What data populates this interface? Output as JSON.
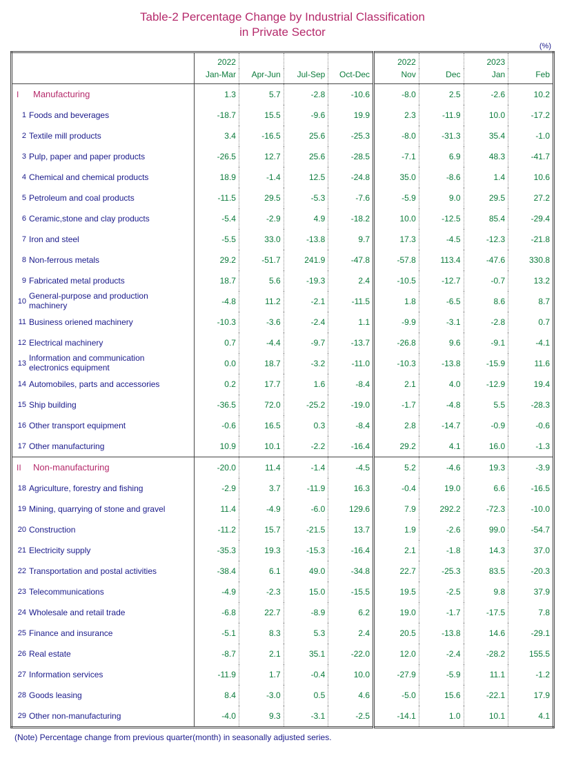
{
  "title": "Table-2   Percentage Change by Industrial Classification",
  "subtitle": "in Private Sector",
  "unit": "(%)",
  "note": "(Note)    Percentage change from previous quarter(month) in seasonally adjusted series.",
  "columns": {
    "group1_top": [
      "2022",
      "",
      "",
      ""
    ],
    "group1_bot": [
      "Jan-Mar",
      "Apr-Jun",
      "Jul-Sep",
      "Oct-Dec"
    ],
    "group2_top": [
      "2022",
      "",
      "2023",
      ""
    ],
    "group2_bot": [
      "Nov",
      "Dec",
      "Jan",
      "Feb"
    ]
  },
  "colors": {
    "title": "#b52a6b",
    "header": "#1a1a8a",
    "value": "#0a7a3a",
    "border": "#444444",
    "dotted": "#888888",
    "background": "#ffffff"
  },
  "rows": [
    {
      "type": "section",
      "roman": "I",
      "label": "Manufacturing",
      "v": [
        "1.3",
        "5.7",
        "-2.8",
        "-10.6",
        "-8.0",
        "2.5",
        "-2.6",
        "10.2"
      ]
    },
    {
      "n": "1",
      "label": "Foods and beverages",
      "v": [
        "-18.7",
        "15.5",
        "-9.6",
        "19.9",
        "2.3",
        "-11.9",
        "10.0",
        "-17.2"
      ]
    },
    {
      "n": "2",
      "label": "Textile mill products",
      "v": [
        "3.4",
        "-16.5",
        "25.6",
        "-25.3",
        "-8.0",
        "-31.3",
        "35.4",
        "-1.0"
      ]
    },
    {
      "n": "3",
      "label": "Pulp, paper and paper products",
      "v": [
        "-26.5",
        "12.7",
        "25.6",
        "-28.5",
        "-7.1",
        "6.9",
        "48.3",
        "-41.7"
      ]
    },
    {
      "n": "4",
      "label": "Chemical and chemical products",
      "v": [
        "18.9",
        "-1.4",
        "12.5",
        "-24.8",
        "35.0",
        "-8.6",
        "1.4",
        "10.6"
      ]
    },
    {
      "n": "5",
      "label": "Petroleum and coal products",
      "v": [
        "-11.5",
        "29.5",
        "-5.3",
        "-7.6",
        "-5.9",
        "9.0",
        "29.5",
        "27.2"
      ]
    },
    {
      "n": "6",
      "label": "Ceramic,stone and clay products",
      "v": [
        "-5.4",
        "-2.9",
        "4.9",
        "-18.2",
        "10.0",
        "-12.5",
        "85.4",
        "-29.4"
      ]
    },
    {
      "n": "7",
      "label": "Iron and steel",
      "v": [
        "-5.5",
        "33.0",
        "-13.8",
        "9.7",
        "17.3",
        "-4.5",
        "-12.3",
        "-21.8"
      ]
    },
    {
      "n": "8",
      "label": "Non-ferrous metals",
      "v": [
        "29.2",
        "-51.7",
        "241.9",
        "-47.8",
        "-57.8",
        "113.4",
        "-47.6",
        "330.8"
      ]
    },
    {
      "n": "9",
      "label": "Fabricated metal products",
      "v": [
        "18.7",
        "5.6",
        "-19.3",
        "2.4",
        "-10.5",
        "-12.7",
        "-0.7",
        "13.2"
      ]
    },
    {
      "n": "10",
      "label": "General-purpose and production machinery",
      "v": [
        "-4.8",
        "11.2",
        "-2.1",
        "-11.5",
        "1.8",
        "-6.5",
        "8.6",
        "8.7"
      ]
    },
    {
      "n": "11",
      "label": "Business oriened machinery",
      "v": [
        "-10.3",
        "-3.6",
        "-2.4",
        "1.1",
        "-9.9",
        "-3.1",
        "-2.8",
        "0.7"
      ]
    },
    {
      "n": "12",
      "label": "Electrical machinery",
      "v": [
        "0.7",
        "-4.4",
        "-9.7",
        "-13.7",
        "-26.8",
        "9.6",
        "-9.1",
        "-4.1"
      ]
    },
    {
      "n": "13",
      "label": "Information and communication electronics equipment",
      "v": [
        "0.0",
        "18.7",
        "-3.2",
        "-11.0",
        "-10.3",
        "-13.8",
        "-15.9",
        "11.6"
      ]
    },
    {
      "n": "14",
      "label": "Automobiles, parts and accessories",
      "v": [
        "0.2",
        "17.7",
        "1.6",
        "-8.4",
        "2.1",
        "4.0",
        "-12.9",
        "19.4"
      ]
    },
    {
      "n": "15",
      "label": "Ship building",
      "v": [
        "-36.5",
        "72.0",
        "-25.2",
        "-19.0",
        "-1.7",
        "-4.8",
        "5.5",
        "-28.3"
      ]
    },
    {
      "n": "16",
      "label": "Other transport equipment",
      "v": [
        "-0.6",
        "16.5",
        "0.3",
        "-8.4",
        "2.8",
        "-14.7",
        "-0.9",
        "-0.6"
      ]
    },
    {
      "n": "17",
      "label": "Other manufacturing",
      "v": [
        "10.9",
        "10.1",
        "-2.2",
        "-16.4",
        "29.2",
        "4.1",
        "16.0",
        "-1.3"
      ]
    },
    {
      "type": "section",
      "roman": "II",
      "label": "Non-manufacturing",
      "v": [
        "-20.0",
        "11.4",
        "-1.4",
        "-4.5",
        "5.2",
        "-4.6",
        "19.3",
        "-3.9"
      ]
    },
    {
      "n": "18",
      "label": "Agriculture, forestry and fishing",
      "v": [
        "-2.9",
        "3.7",
        "-11.9",
        "16.3",
        "-0.4",
        "19.0",
        "6.6",
        "-16.5"
      ]
    },
    {
      "n": "19",
      "label": "Mining, quarrying of stone and gravel",
      "v": [
        "11.4",
        "-4.9",
        "-6.0",
        "129.6",
        "7.9",
        "292.2",
        "-72.3",
        "-10.0"
      ]
    },
    {
      "n": "20",
      "label": "Construction",
      "v": [
        "-11.2",
        "15.7",
        "-21.5",
        "13.7",
        "1.9",
        "-2.6",
        "99.0",
        "-54.7"
      ]
    },
    {
      "n": "21",
      "label": "Electricity supply",
      "v": [
        "-35.3",
        "19.3",
        "-15.3",
        "-16.4",
        "2.1",
        "-1.8",
        "14.3",
        "37.0"
      ]
    },
    {
      "n": "22",
      "label": "Transportation and postal activities",
      "v": [
        "-38.4",
        "6.1",
        "49.0",
        "-34.8",
        "22.7",
        "-25.3",
        "83.5",
        "-20.3"
      ]
    },
    {
      "n": "23",
      "label": "Telecommunications",
      "v": [
        "-4.9",
        "-2.3",
        "15.0",
        "-15.5",
        "19.5",
        "-2.5",
        "9.8",
        "37.9"
      ]
    },
    {
      "n": "24",
      "label": "Wholesale and retail trade",
      "v": [
        "-6.8",
        "22.7",
        "-8.9",
        "6.2",
        "19.0",
        "-1.7",
        "-17.5",
        "7.8"
      ]
    },
    {
      "n": "25",
      "label": "Finance and insurance",
      "v": [
        "-5.1",
        "8.3",
        "5.3",
        "2.4",
        "20.5",
        "-13.8",
        "14.6",
        "-29.1"
      ]
    },
    {
      "n": "26",
      "label": "Real estate",
      "v": [
        "-8.7",
        "2.1",
        "35.1",
        "-22.0",
        "12.0",
        "-2.4",
        "-28.2",
        "155.5"
      ]
    },
    {
      "n": "27",
      "label": "Information services",
      "v": [
        "-11.9",
        "1.7",
        "-0.4",
        "10.0",
        "-27.9",
        "-5.9",
        "11.1",
        "-1.2"
      ]
    },
    {
      "n": "28",
      "label": "Goods leasing",
      "v": [
        "8.4",
        "-3.0",
        "0.5",
        "4.6",
        "-5.0",
        "15.6",
        "-22.1",
        "17.9"
      ]
    },
    {
      "n": "29",
      "label": "Other non-manufacturing",
      "v": [
        "-4.0",
        "9.3",
        "-3.1",
        "-2.5",
        "-14.1",
        "1.0",
        "10.1",
        "4.1"
      ]
    }
  ]
}
